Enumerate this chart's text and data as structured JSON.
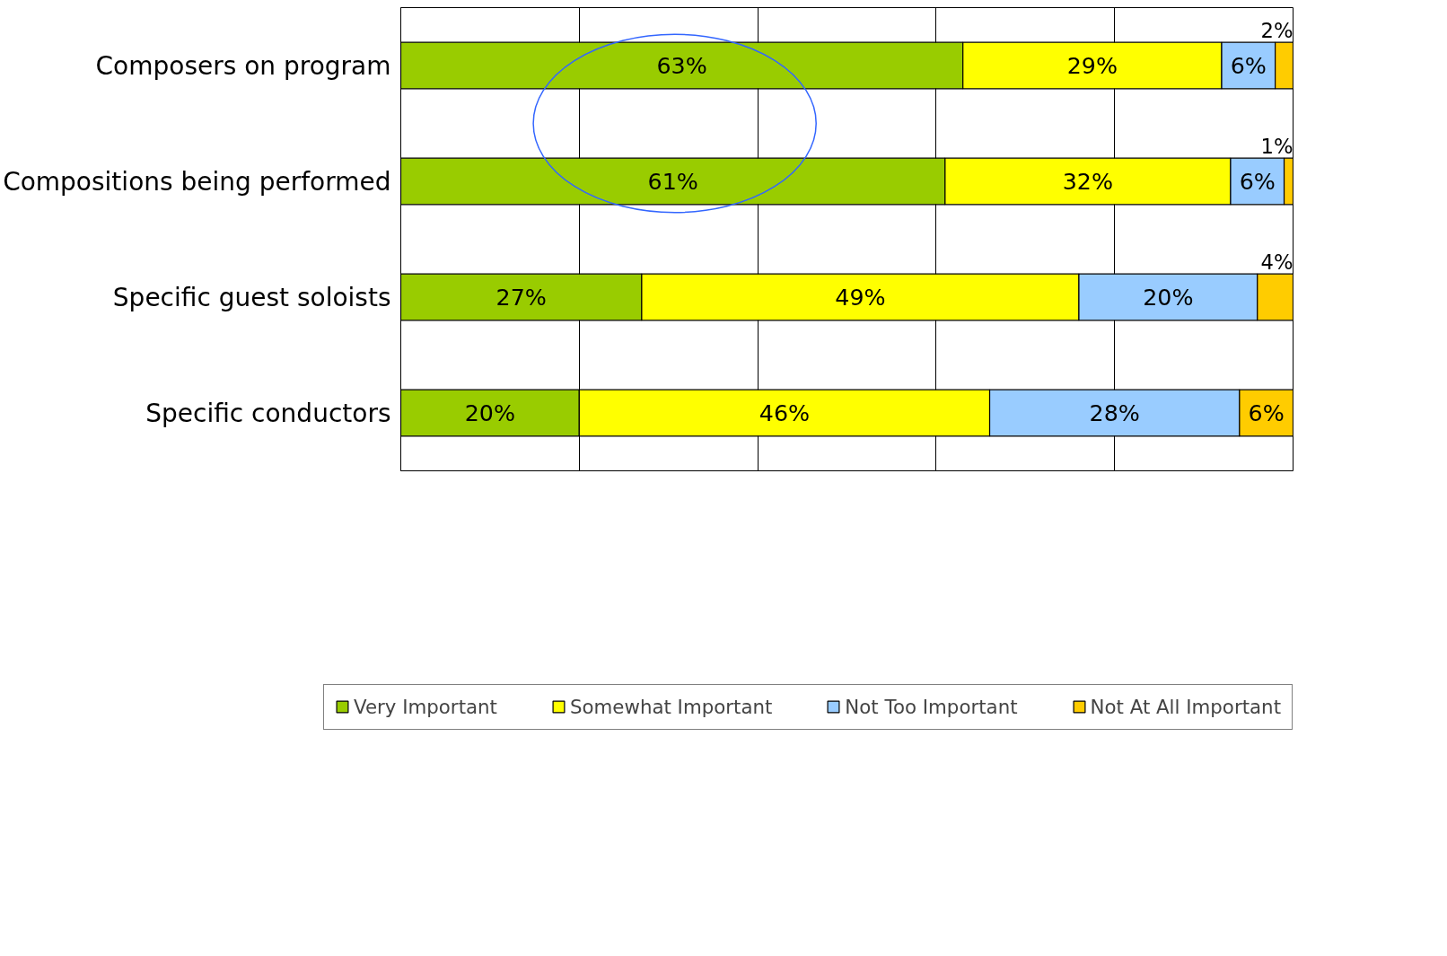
{
  "chart_data": {
    "type": "bar",
    "orientation": "horizontal",
    "stacked": true,
    "categories": [
      "Composers on program",
      "Compositions being performed",
      "Specific guest soloists",
      "Specific conductors"
    ],
    "series": [
      {
        "name": "Very Important",
        "color": "#99cc00",
        "values": [
          63,
          61,
          27,
          20
        ],
        "value_labels": [
          "63%",
          "61%",
          "27%",
          "20%"
        ]
      },
      {
        "name": "Somewhat Important",
        "color": "#ffff00",
        "values": [
          29,
          32,
          49,
          46
        ],
        "value_labels": [
          "29%",
          "32%",
          "49%",
          "46%"
        ]
      },
      {
        "name": "Not Too Important",
        "color": "#99ccff",
        "values": [
          6,
          6,
          20,
          28
        ],
        "value_labels": [
          "6%",
          "6%",
          "20%",
          "28%"
        ]
      },
      {
        "name": "Not At All Important",
        "color": "#ffcc00",
        "values": [
          2,
          1,
          4,
          6
        ],
        "value_labels": [
          "2%",
          "1%",
          "4%",
          "6%"
        ]
      }
    ],
    "xlim": [
      0,
      100
    ],
    "xticks": [
      {
        "value": 0,
        "label": null
      },
      {
        "value": 20,
        "label": null
      },
      {
        "value": 40,
        "label": null
      },
      {
        "value": 60,
        "label": null
      },
      {
        "value": 80,
        "label": null
      },
      {
        "value": 100,
        "label": null
      }
    ],
    "tick_labels": "y",
    "grid": "x",
    "legend": "bottom"
  }
}
